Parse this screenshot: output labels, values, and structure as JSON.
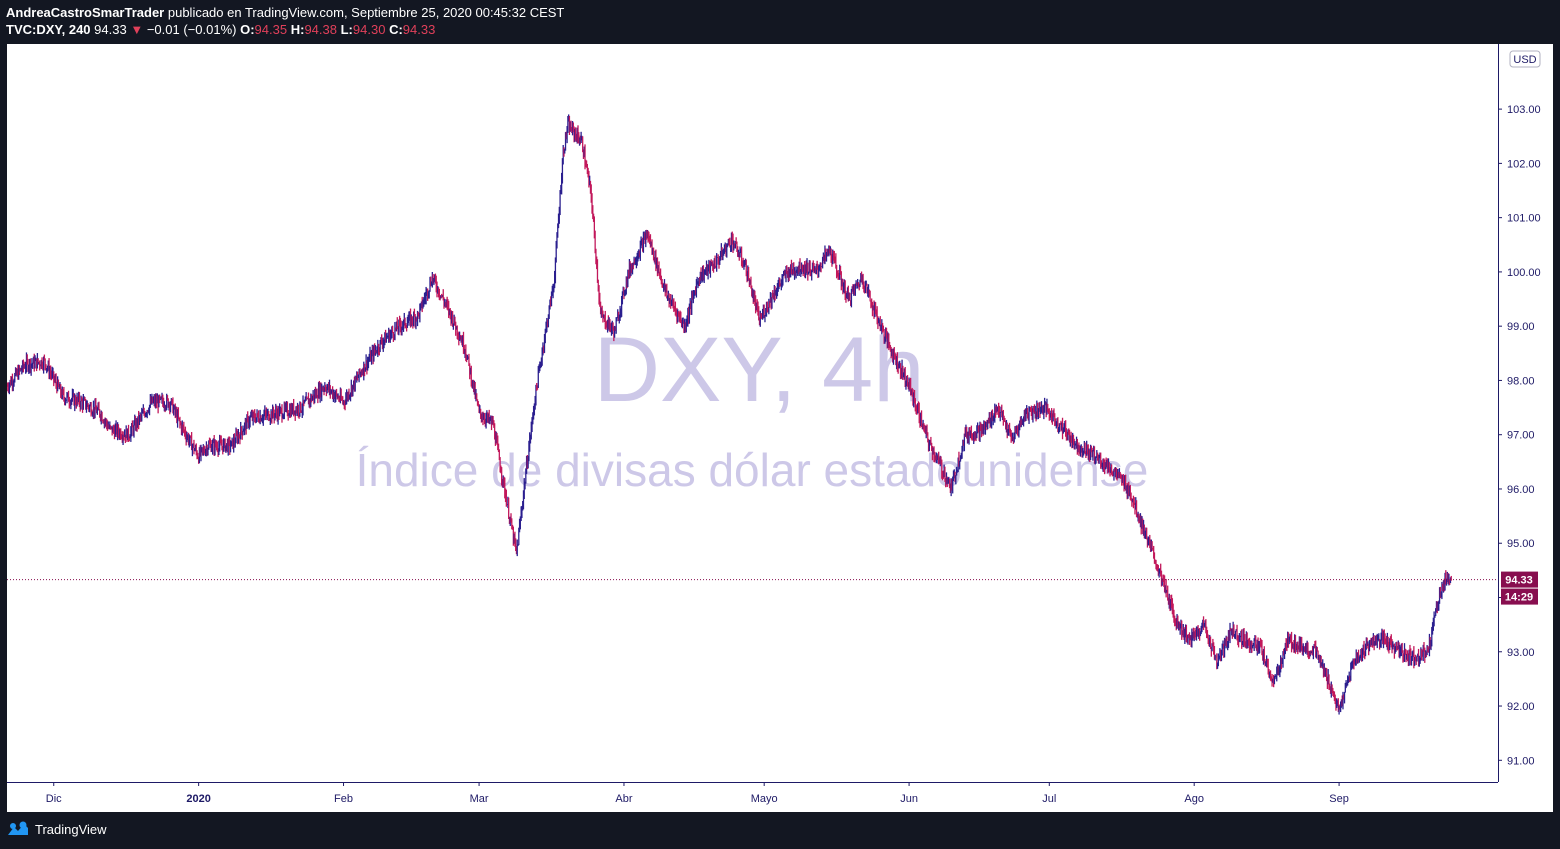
{
  "header": {
    "author": "AndreaCastroSmarTrader",
    "publish_text": "publicado en TradingView.com, Septiembre 25, 2020 00:45:32 CEST",
    "symbol": "TVC:DXY, 240",
    "last": "94.33",
    "arrow": "▼",
    "change": "−0.01 (−0.01%)",
    "o_label": "O:",
    "o_value": "94.35",
    "h_label": "H:",
    "h_value": "94.38",
    "l_label": "L:",
    "l_value": "94.30",
    "c_label": "C:",
    "c_value": "94.33"
  },
  "watermark": {
    "title": "DXY, 4h",
    "subtitle": "Índice de divisas dólar estadounidense"
  },
  "axis": {
    "currency": "USD",
    "last_price_label": "94.33",
    "countdown_label": "14:29"
  },
  "footer": {
    "brand": "TradingView"
  },
  "colors": {
    "background": "#131722",
    "plot": "#ffffff",
    "up_candle": "#2b1f8f",
    "down_candle": "#c2185b",
    "watermark": "#cdc8e8",
    "price_tag": "#880e4f",
    "axis_text": "#1e1a66"
  },
  "chart_data": {
    "type": "candlestick",
    "interval": "4h",
    "ylim": [
      90.6,
      104.2
    ],
    "y_ticks": [
      91.0,
      92.0,
      93.0,
      94.0,
      95.0,
      96.0,
      97.0,
      98.0,
      99.0,
      100.0,
      101.0,
      102.0,
      103.0
    ],
    "x_ticks": [
      {
        "label": "Dic",
        "date": "2019-12-01",
        "bold": false
      },
      {
        "label": "2020",
        "date": "2020-01-01",
        "bold": true
      },
      {
        "label": "Feb",
        "date": "2020-02-01",
        "bold": false
      },
      {
        "label": "Mar",
        "date": "2020-03-01",
        "bold": false
      },
      {
        "label": "Abr",
        "date": "2020-04-01",
        "bold": false
      },
      {
        "label": "Mayo",
        "date": "2020-05-01",
        "bold": false
      },
      {
        "label": "Jun",
        "date": "2020-06-01",
        "bold": false
      },
      {
        "label": "Jul",
        "date": "2020-07-01",
        "bold": false
      },
      {
        "label": "Ago",
        "date": "2020-08-01",
        "bold": false
      },
      {
        "label": "Sep",
        "date": "2020-09-01",
        "bold": false
      }
    ],
    "x_range": [
      "2019-11-21",
      "2020-10-05"
    ],
    "last_price": 94.33,
    "price_path": [
      {
        "date": "2019-11-21",
        "close": 97.9
      },
      {
        "date": "2019-11-25",
        "close": 98.3
      },
      {
        "date": "2019-11-29",
        "close": 98.35
      },
      {
        "date": "2019-12-03",
        "close": 97.7
      },
      {
        "date": "2019-12-07",
        "close": 97.6
      },
      {
        "date": "2019-12-11",
        "close": 97.4
      },
      {
        "date": "2019-12-13",
        "close": 97.1
      },
      {
        "date": "2019-12-17",
        "close": 97.0
      },
      {
        "date": "2019-12-22",
        "close": 97.6
      },
      {
        "date": "2019-12-26",
        "close": 97.6
      },
      {
        "date": "2019-12-28",
        "close": 97.2
      },
      {
        "date": "2020-01-01",
        "close": 96.6
      },
      {
        "date": "2020-01-03",
        "close": 96.8
      },
      {
        "date": "2020-01-08",
        "close": 96.8
      },
      {
        "date": "2020-01-12",
        "close": 97.3
      },
      {
        "date": "2020-01-18",
        "close": 97.4
      },
      {
        "date": "2020-01-23",
        "close": 97.5
      },
      {
        "date": "2020-01-28",
        "close": 97.9
      },
      {
        "date": "2020-02-01",
        "close": 97.6
      },
      {
        "date": "2020-02-05",
        "close": 98.2
      },
      {
        "date": "2020-02-09",
        "close": 98.7
      },
      {
        "date": "2020-02-13",
        "close": 99.0
      },
      {
        "date": "2020-02-17",
        "close": 99.2
      },
      {
        "date": "2020-02-20",
        "close": 99.9
      },
      {
        "date": "2020-02-24",
        "close": 99.2
      },
      {
        "date": "2020-02-27",
        "close": 98.6
      },
      {
        "date": "2020-03-01",
        "close": 97.4
      },
      {
        "date": "2020-03-04",
        "close": 97.2
      },
      {
        "date": "2020-03-06",
        "close": 96.2
      },
      {
        "date": "2020-03-09",
        "close": 94.8
      },
      {
        "date": "2020-03-11",
        "close": 96.3
      },
      {
        "date": "2020-03-13",
        "close": 97.7
      },
      {
        "date": "2020-03-15",
        "close": 98.8
      },
      {
        "date": "2020-03-17",
        "close": 99.8
      },
      {
        "date": "2020-03-19",
        "close": 102.2
      },
      {
        "date": "2020-03-20",
        "close": 102.7
      },
      {
        "date": "2020-03-23",
        "close": 102.4
      },
      {
        "date": "2020-03-25",
        "close": 101.4
      },
      {
        "date": "2020-03-27",
        "close": 99.2
      },
      {
        "date": "2020-03-30",
        "close": 98.9
      },
      {
        "date": "2020-04-02",
        "close": 100.0
      },
      {
        "date": "2020-04-06",
        "close": 100.7
      },
      {
        "date": "2020-04-10",
        "close": 99.6
      },
      {
        "date": "2020-04-14",
        "close": 99.0
      },
      {
        "date": "2020-04-17",
        "close": 99.9
      },
      {
        "date": "2020-04-21",
        "close": 100.2
      },
      {
        "date": "2020-04-24",
        "close": 100.6
      },
      {
        "date": "2020-04-27",
        "close": 100.1
      },
      {
        "date": "2020-04-30",
        "close": 99.1
      },
      {
        "date": "2020-05-03",
        "close": 99.6
      },
      {
        "date": "2020-05-06",
        "close": 100.0
      },
      {
        "date": "2020-05-09",
        "close": 100.1
      },
      {
        "date": "2020-05-12",
        "close": 100.0
      },
      {
        "date": "2020-05-15",
        "close": 100.4
      },
      {
        "date": "2020-05-19",
        "close": 99.5
      },
      {
        "date": "2020-05-22",
        "close": 99.9
      },
      {
        "date": "2020-05-25",
        "close": 99.2
      },
      {
        "date": "2020-05-28",
        "close": 98.6
      },
      {
        "date": "2020-06-01",
        "close": 97.9
      },
      {
        "date": "2020-06-05",
        "close": 96.9
      },
      {
        "date": "2020-06-09",
        "close": 96.2
      },
      {
        "date": "2020-06-10",
        "close": 96.0
      },
      {
        "date": "2020-06-13",
        "close": 97.0
      },
      {
        "date": "2020-06-17",
        "close": 97.1
      },
      {
        "date": "2020-06-20",
        "close": 97.5
      },
      {
        "date": "2020-06-23",
        "close": 96.9
      },
      {
        "date": "2020-06-26",
        "close": 97.4
      },
      {
        "date": "2020-06-30",
        "close": 97.5
      },
      {
        "date": "2020-07-03",
        "close": 97.2
      },
      {
        "date": "2020-07-07",
        "close": 96.8
      },
      {
        "date": "2020-07-11",
        "close": 96.6
      },
      {
        "date": "2020-07-15",
        "close": 96.3
      },
      {
        "date": "2020-07-18",
        "close": 96.0
      },
      {
        "date": "2020-07-21",
        "close": 95.3
      },
      {
        "date": "2020-07-24",
        "close": 94.6
      },
      {
        "date": "2020-07-28",
        "close": 93.6
      },
      {
        "date": "2020-07-31",
        "close": 93.2
      },
      {
        "date": "2020-08-03",
        "close": 93.5
      },
      {
        "date": "2020-08-06",
        "close": 92.8
      },
      {
        "date": "2020-08-09",
        "close": 93.4
      },
      {
        "date": "2020-08-12",
        "close": 93.2
      },
      {
        "date": "2020-08-15",
        "close": 93.1
      },
      {
        "date": "2020-08-18",
        "close": 92.4
      },
      {
        "date": "2020-08-21",
        "close": 93.2
      },
      {
        "date": "2020-08-24",
        "close": 93.1
      },
      {
        "date": "2020-08-27",
        "close": 93.0
      },
      {
        "date": "2020-08-30",
        "close": 92.4
      },
      {
        "date": "2020-09-01",
        "close": 91.9
      },
      {
        "date": "2020-09-04",
        "close": 92.8
      },
      {
        "date": "2020-09-08",
        "close": 93.2
      },
      {
        "date": "2020-09-11",
        "close": 93.2
      },
      {
        "date": "2020-09-14",
        "close": 93.0
      },
      {
        "date": "2020-09-17",
        "close": 92.9
      },
      {
        "date": "2020-09-20",
        "close": 93.0
      },
      {
        "date": "2020-09-22",
        "close": 93.9
      },
      {
        "date": "2020-09-24",
        "close": 94.4
      },
      {
        "date": "2020-09-25",
        "close": 94.33
      }
    ]
  }
}
